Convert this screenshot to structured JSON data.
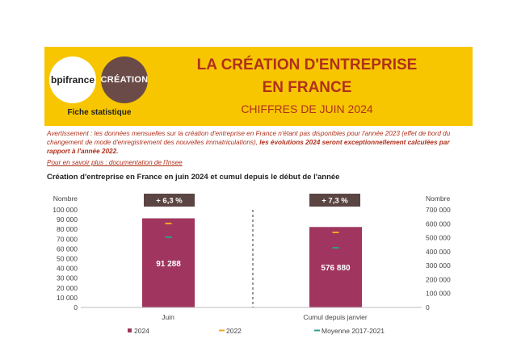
{
  "banner": {
    "logo_bpi": "bpifrance",
    "logo_creation": "CRÉATION",
    "fiche": "Fiche statistique",
    "title_line1": "LA CRÉATION D'ENTREPRISE",
    "title_line2": "EN FRANCE",
    "subtitle": "CHIFFRES DE JUIN 2024"
  },
  "warning": {
    "text": "Avertissement : les données mensuelles sur la création d'entreprise en France n'étant pas disponibles pour l'année 2023 (effet de bord du changement de mode d'enregistrement des nouvelles immatriculations),",
    "bold": "les évolutions 2024 seront exceptionnellement calculées par rapport à l'année 2022."
  },
  "link": "Pour en savoir plus : documentation de l'Insee",
  "chart_title": "Création d'entreprise en France en juin 2024 et cumul depuis le début de l'année",
  "colors": {
    "series2024": "#a0365f",
    "series2022": "#f5a623",
    "seriesMoy": "#2e9e8f",
    "badge": "#5a4542",
    "banner": "#f7c600"
  },
  "chart_data": [
    {
      "type": "bar",
      "categories": [
        "Juin"
      ],
      "ylabel": "Nombre",
      "ylim": [
        0,
        100000
      ],
      "yticks": [
        "0",
        "10 000",
        "20 000",
        "30 000",
        "40 000",
        "50 000",
        "60 000",
        "70 000",
        "80 000",
        "90 000",
        "100 000"
      ],
      "series": [
        {
          "name": "2024",
          "values": [
            91288
          ],
          "value_label": "91 288"
        },
        {
          "name": "2022",
          "values": [
            86000
          ]
        },
        {
          "name": "Moyenne 2017-2021",
          "values": [
            72000
          ]
        }
      ],
      "evolution": "+ 6,3 %"
    },
    {
      "type": "bar",
      "categories": [
        "Cumul depuis janvier"
      ],
      "ylabel": "Nombre",
      "ylim": [
        0,
        700000
      ],
      "yticks": [
        "0",
        "100 000",
        "200 000",
        "300 000",
        "400 000",
        "500 000",
        "600 000",
        "700 000"
      ],
      "series": [
        {
          "name": "2024",
          "values": [
            576880
          ],
          "value_label": "576 880"
        },
        {
          "name": "2022",
          "values": [
            538000
          ]
        },
        {
          "name": "Moyenne 2017-2021",
          "values": [
            428000
          ]
        }
      ],
      "evolution": "+ 7,3 %"
    }
  ],
  "legend": [
    "2024",
    "2022",
    "Moyenne 2017-2021"
  ]
}
